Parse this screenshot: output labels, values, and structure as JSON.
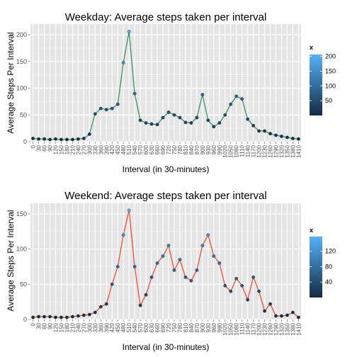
{
  "chart_data": [
    {
      "type": "line",
      "title": "Weekday: Average steps taken per interval",
      "xlabel": "Interval (in 30-minutes)",
      "ylabel": "Average Steps Per Interval",
      "ylim": [
        0,
        220
      ],
      "yticks": [
        0,
        50,
        100,
        150,
        200
      ],
      "line_color": "#2e8b57",
      "grid": true,
      "legend": {
        "title": "x",
        "position": "right",
        "ticks": [
          50,
          100,
          150,
          200
        ],
        "range": [
          0,
          206
        ],
        "low_color": "#132b43",
        "high_color": "#56b1f7"
      },
      "x": [
        0,
        30,
        60,
        90,
        120,
        150,
        180,
        210,
        240,
        270,
        300,
        330,
        360,
        390,
        420,
        450,
        480,
        510,
        540,
        570,
        600,
        630,
        660,
        690,
        720,
        750,
        780,
        810,
        840,
        870,
        900,
        930,
        960,
        990,
        1020,
        1050,
        1080,
        1110,
        1140,
        1170,
        1200,
        1230,
        1260,
        1290,
        1320,
        1350,
        1380,
        1410
      ],
      "values": [
        6,
        5,
        5,
        4,
        5,
        4,
        4,
        4,
        5,
        6,
        14,
        52,
        62,
        60,
        62,
        70,
        148,
        206,
        90,
        40,
        35,
        33,
        32,
        45,
        55,
        50,
        45,
        36,
        35,
        45,
        88,
        40,
        28,
        35,
        50,
        70,
        85,
        80,
        42,
        30,
        20,
        20,
        15,
        12,
        10,
        8,
        6,
        5
      ]
    },
    {
      "type": "line",
      "title": "Weekend: Average steps taken per interval",
      "xlabel": "Interval (in 30-minutes)",
      "ylabel": "Average Steps Per Interval",
      "ylim": [
        0,
        165
      ],
      "yticks": [
        0,
        50,
        100,
        150
      ],
      "line_color": "#e8452a",
      "grid": true,
      "legend": {
        "title": "x",
        "position": "right",
        "ticks": [
          40,
          80,
          120
        ],
        "range": [
          0,
          158
        ],
        "low_color": "#132b43",
        "high_color": "#56b1f7"
      },
      "x": [
        0,
        30,
        60,
        90,
        120,
        150,
        180,
        210,
        240,
        270,
        300,
        330,
        360,
        390,
        420,
        450,
        480,
        510,
        540,
        570,
        600,
        630,
        660,
        690,
        720,
        750,
        780,
        810,
        840,
        870,
        900,
        930,
        960,
        990,
        1020,
        1050,
        1080,
        1110,
        1140,
        1170,
        1200,
        1230,
        1260,
        1290,
        1320,
        1350,
        1380,
        1410
      ],
      "values": [
        3,
        4,
        4,
        4,
        3,
        3,
        3,
        4,
        5,
        6,
        7,
        10,
        18,
        22,
        50,
        75,
        120,
        155,
        75,
        20,
        35,
        60,
        80,
        90,
        105,
        70,
        85,
        60,
        55,
        70,
        105,
        120,
        90,
        80,
        48,
        40,
        58,
        48,
        28,
        60,
        40,
        12,
        22,
        5,
        5,
        6,
        10,
        3
      ]
    }
  ],
  "xtick_labels": [
    "0",
    "30",
    "60",
    "90",
    "120",
    "150",
    "180",
    "210",
    "240",
    "270",
    "300",
    "330",
    "360",
    "390",
    "420",
    "450",
    "480",
    "510",
    "540",
    "570",
    "600",
    "630",
    "660",
    "690",
    "720",
    "750",
    "780",
    "810",
    "840",
    "870",
    "900",
    "930",
    "960",
    "990",
    "1020",
    "1050",
    "1080",
    "1110",
    "1140",
    "1170",
    "1200",
    "1230",
    "1260",
    "1290",
    "1320",
    "1350",
    "1380",
    "1410"
  ]
}
